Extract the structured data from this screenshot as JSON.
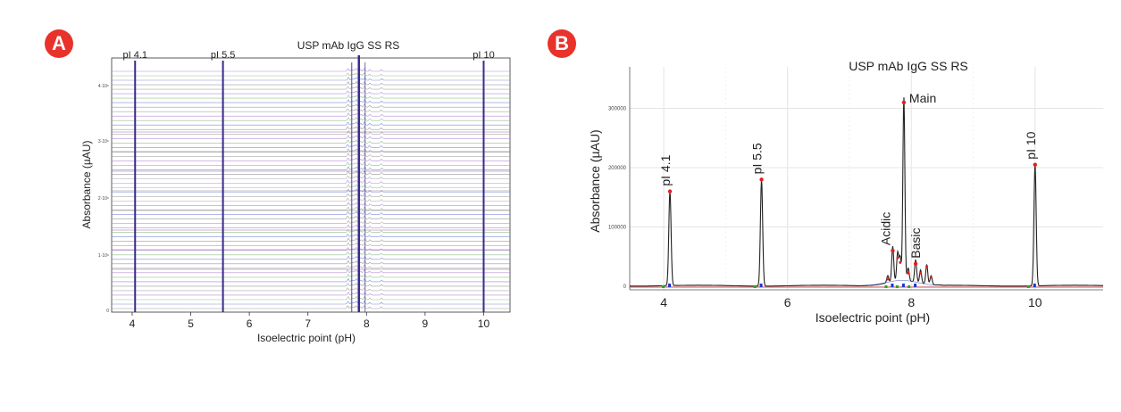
{
  "badges": {
    "a": "A",
    "b": "B"
  },
  "chart_data": [
    {
      "type": "line",
      "panel": "A",
      "title": "USP mAb IgG SS RS",
      "xlabel": "Isoelectric point (pH)",
      "ylabel": "Absorbance (µAU)",
      "xlim": [
        3.65,
        10.45
      ],
      "xticks": [
        4,
        5,
        6,
        7,
        8,
        9,
        10
      ],
      "yticks": [
        "0",
        "1·10⁶",
        "2·10⁶",
        "3·10⁶",
        "4·10⁶"
      ],
      "trace_count": 54,
      "trace_colors": [
        "#8a8a8a",
        "#6a7bd6",
        "#7fb47a",
        "#a77ad6",
        "#9a9a9a"
      ],
      "peaks": [
        {
          "label": "pI 4.1",
          "x": 4.05
        },
        {
          "label": "pI 5.5",
          "x": 5.55
        },
        {
          "label": "pI 10",
          "x": 10.0
        }
      ],
      "sample_peaks": [
        7.68,
        7.74,
        7.78,
        7.82,
        7.86,
        7.9,
        7.96,
        8.05,
        8.25
      ],
      "main_peak_x": 7.87,
      "grid": false
    },
    {
      "type": "line",
      "panel": "B",
      "title": "USP mAb IgG SS RS",
      "xlabel": "Isoelectric point (pH)",
      "ylabel": "Absorbance (µAU)",
      "xlim": [
        3.45,
        11.1
      ],
      "ylim": [
        -6000,
        370000
      ],
      "xticks": [
        4,
        6,
        8,
        10
      ],
      "yticks": [
        0,
        100000,
        200000,
        300000
      ],
      "ytick_labels": [
        "0",
        "100000",
        "200000",
        "300000"
      ],
      "grid": true,
      "peaks": [
        {
          "label": "pI 4.1",
          "x": 4.1,
          "y": 160000
        },
        {
          "label": "pI 5.5",
          "x": 5.58,
          "y": 180000
        },
        {
          "label": "Acidic",
          "x": 7.7,
          "y": 60000
        },
        {
          "label": "Main",
          "x": 7.88,
          "y": 310000
        },
        {
          "label": "Basic",
          "x": 8.07,
          "y": 38000
        },
        {
          "label": "pI 10",
          "x": 10.0,
          "y": 205000
        }
      ],
      "minor_peaks": [
        {
          "x": 7.62,
          "y": 12000
        },
        {
          "x": 7.78,
          "y": 48000
        },
        {
          "x": 7.82,
          "y": 40000
        },
        {
          "x": 7.95,
          "y": 22000
        },
        {
          "x": 8.15,
          "y": 22000
        },
        {
          "x": 8.25,
          "y": 33000
        },
        {
          "x": 8.32,
          "y": 15000
        }
      ],
      "colors": {
        "trace": "#222222",
        "baseline": "#e05555",
        "peak_marker": "#e02020",
        "start_marker": "#22aa22",
        "end_marker": "#2233cc",
        "grid": "#e4e4e4"
      }
    }
  ]
}
